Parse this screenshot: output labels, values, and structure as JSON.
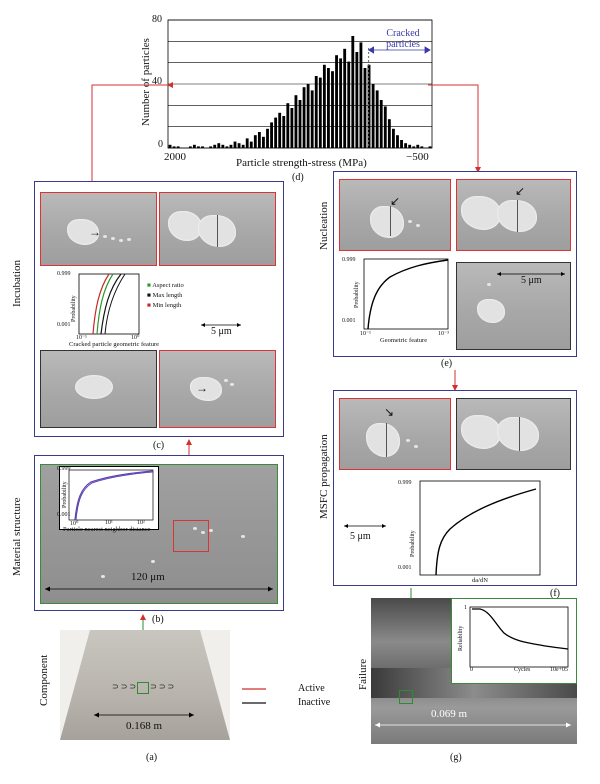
{
  "histogram": {
    "ylabel": "Number of particles",
    "xlabel": "Particle strength-stress (MPa)",
    "y_ticks": [
      "0",
      "40",
      "80"
    ],
    "x_left": "2000",
    "x_right": "−500",
    "annotation": "Cracked particles",
    "caption": "(d)",
    "bar_color": "#000000"
  },
  "chart_data": {
    "type": "bar",
    "xlabel": "Particle strength-stress (MPa)",
    "ylabel": "Number of particles",
    "ylim": [
      0,
      80
    ],
    "x_range": [
      2000,
      -500
    ],
    "values": [
      2,
      1,
      1,
      0,
      0,
      1,
      2,
      1,
      1,
      0,
      1,
      2,
      3,
      2,
      1,
      2,
      4,
      3,
      2,
      6,
      4,
      8,
      10,
      7,
      12,
      16,
      19,
      22,
      20,
      28,
      25,
      33,
      30,
      38,
      40,
      36,
      45,
      44,
      52,
      50,
      48,
      58,
      56,
      62,
      54,
      70,
      60,
      66,
      50,
      52,
      40,
      36,
      30,
      26,
      18,
      12,
      8,
      5,
      3,
      2,
      1,
      2,
      1,
      0,
      1
    ],
    "annotation": "Cracked particles"
  },
  "incubation": {
    "side_label": "Incubation",
    "caption": "(c)",
    "scale": "5 μm",
    "plot": {
      "ylabel": "Probability",
      "xlabel": "Cracked particle geometric feature",
      "y_top": "0.999",
      "y_bot": "0.001",
      "x_left": "10⁻¹",
      "x_right": "10⁰",
      "legend": [
        "Aspect ratio",
        "Max length",
        "Min length"
      ],
      "legend_colors": [
        "#2a9a2a",
        "#111111",
        "#c62828"
      ]
    }
  },
  "material": {
    "side_label": "Material structure",
    "caption": "(b)",
    "scale": "120 μm",
    "plot": {
      "ylabel": "Probability",
      "xlabel": "Particle nearest neighbor distance",
      "y_top": "0.999",
      "y_bot": "0.001",
      "x_ticks": [
        "10⁰",
        "10¹",
        "10²"
      ]
    }
  },
  "component": {
    "side_label": "Component",
    "caption": "(a)",
    "scale": "0.168 m"
  },
  "legend": {
    "active": "Active",
    "inactive": "Inactive",
    "active_color": "#d32f2f",
    "inactive_color": "#111111"
  },
  "nucleation": {
    "side_label": "Nucleation",
    "caption": "(e)",
    "scale": "5 μm",
    "plot": {
      "ylabel": "Probability",
      "xlabel": "Geometric feature",
      "y_top": "0.999",
      "y_bot": "0.001",
      "x_left": "10⁻¹",
      "x_right": "10⁻³"
    }
  },
  "propagation": {
    "side_label": "MSFC propagation",
    "caption": "(f)",
    "scale": "5 μm",
    "plot": {
      "ylabel": "Probability",
      "xlabel": "da/dN",
      "y_top": "0.999",
      "y_bot": "0.001"
    }
  },
  "failure": {
    "side_label": "Failure",
    "caption": "(g)",
    "scale": "0.069 m",
    "plot": {
      "ylabel": "Reliability",
      "xlabel": "Cycles",
      "y_top": "1",
      "y_bot": "0",
      "x_left": "0",
      "x_right": "10e+05"
    }
  }
}
